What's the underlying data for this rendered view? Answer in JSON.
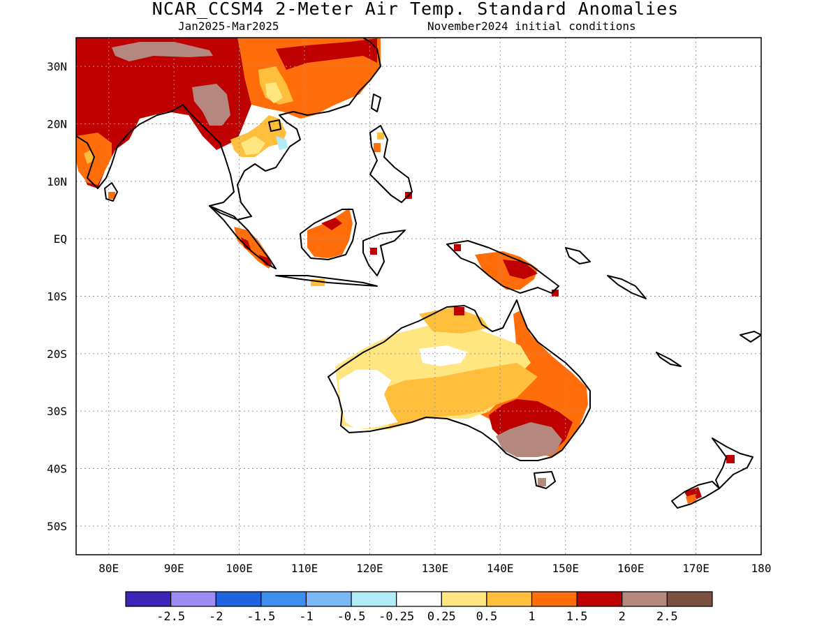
{
  "header": {
    "title": "NCAR_CCSM4 2-Meter Air Temp. Standard Anomalies",
    "period": "Jan2025-Mar2025",
    "init": "November2024 initial conditions"
  },
  "axes": {
    "lat_labels": [
      "30N",
      "20N",
      "10N",
      "EQ",
      "10S",
      "20S",
      "30S",
      "40S",
      "50S"
    ],
    "lat_values": [
      30,
      20,
      10,
      0,
      -10,
      -20,
      -30,
      -40,
      -50
    ],
    "lon_labels": [
      "80E",
      "90E",
      "100E",
      "110E",
      "120E",
      "130E",
      "140E",
      "150E",
      "160E",
      "170E",
      "180"
    ],
    "lon_values": [
      80,
      90,
      100,
      110,
      120,
      130,
      140,
      150,
      160,
      170,
      180
    ],
    "lon_range": [
      75,
      180
    ],
    "lat_range": [
      -55,
      35
    ],
    "grid": "dotted"
  },
  "legend": {
    "colors": [
      "#3a25b8",
      "#9c8cf5",
      "#1e64e0",
      "#3c8ef0",
      "#7ab8f8",
      "#b0ecf8",
      "#ffffff",
      "#ffe680",
      "#ffbe3c",
      "#ff6e0a",
      "#bf0000",
      "#b4887e",
      "#7a5040"
    ],
    "labels": [
      "-2.5",
      "-2",
      "-1.5",
      "-1",
      "-0.5",
      "-0.25",
      "0.25",
      "0.5",
      "1",
      "1.5",
      "2",
      "2.5"
    ]
  },
  "regions": [
    {
      "name": "china-east-anomaly",
      "level": "1.5",
      "color": "#ff6e0a"
    },
    {
      "name": "india-himalaya-anomaly",
      "level": "2",
      "color": "#bf0000"
    },
    {
      "name": "tibet-anomaly",
      "level": "2.5",
      "color": "#b4887e"
    },
    {
      "name": "southern-china-anomaly",
      "level": "1",
      "color": "#ffbe3c"
    },
    {
      "name": "borneo-anomaly",
      "level": "1.5",
      "color": "#ff6e0a"
    },
    {
      "name": "new-guinea-anomaly",
      "level": "2",
      "color": "#bf0000"
    },
    {
      "name": "australia-west-anomaly",
      "level": "0.25",
      "color": "#ffffff"
    },
    {
      "name": "australia-central-anomaly",
      "level": "0.5",
      "color": "#ffe680"
    },
    {
      "name": "australia-east-anomaly",
      "level": "1.5",
      "color": "#ff6e0a"
    },
    {
      "name": "australia-southeast-anomaly",
      "level": "2",
      "color": "#bf0000"
    },
    {
      "name": "victoria-anomaly",
      "level": "2.5",
      "color": "#b4887e"
    },
    {
      "name": "indochina-cool-anomaly",
      "level": "-0.25",
      "color": "#b0ecf8"
    }
  ]
}
